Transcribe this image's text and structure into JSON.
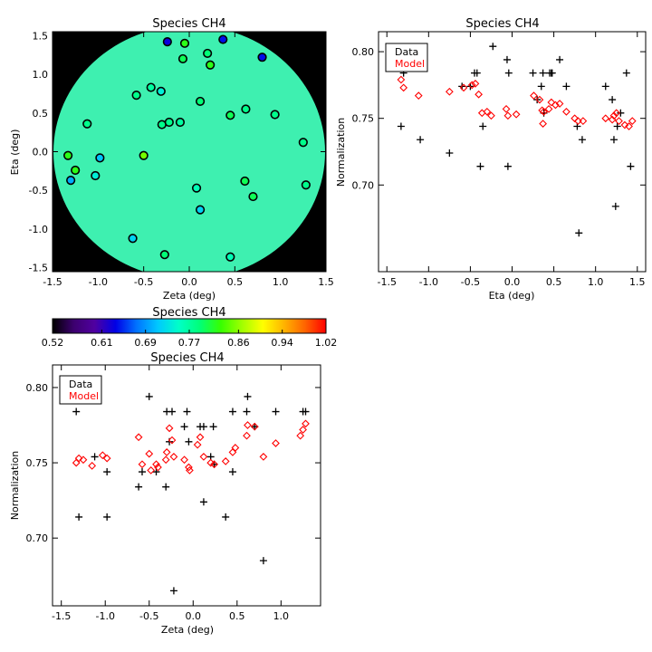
{
  "chart_data": [
    {
      "id": "map",
      "type": "scatter",
      "title": "Species CH4",
      "xlabel": "Zeta (deg)",
      "ylabel": "Eta (deg)",
      "xlim": [
        -1.5,
        1.5
      ],
      "ylim": [
        -1.55,
        1.55
      ],
      "xticks": [
        "-1.5",
        "-1.0",
        "-0.5",
        "0.0",
        "0.5",
        "1.0",
        "1.5"
      ],
      "yticks": [
        "-1.5",
        "-1.0",
        "-0.5",
        "0.0",
        "0.5",
        "1.0",
        "1.5"
      ],
      "background_color": "#000000",
      "field_color": "#3ef0b0",
      "points": [
        {
          "x": -0.24,
          "y": 1.42,
          "v": 0.63
        },
        {
          "x": -0.05,
          "y": 1.4,
          "v": 0.82
        },
        {
          "x": 0.37,
          "y": 1.45,
          "v": 0.64
        },
        {
          "x": 0.8,
          "y": 1.22,
          "v": 0.64
        },
        {
          "x": -0.07,
          "y": 1.2,
          "v": 0.8
        },
        {
          "x": 0.2,
          "y": 1.27,
          "v": 0.79
        },
        {
          "x": 0.23,
          "y": 1.12,
          "v": 0.82
        },
        {
          "x": -0.42,
          "y": 0.83,
          "v": 0.77
        },
        {
          "x": -0.31,
          "y": 0.78,
          "v": 0.74
        },
        {
          "x": -0.58,
          "y": 0.73,
          "v": 0.78
        },
        {
          "x": 0.12,
          "y": 0.65,
          "v": 0.79
        },
        {
          "x": 0.62,
          "y": 0.55,
          "v": 0.78
        },
        {
          "x": 0.45,
          "y": 0.47,
          "v": 0.8
        },
        {
          "x": 0.94,
          "y": 0.48,
          "v": 0.78
        },
        {
          "x": -1.12,
          "y": 0.36,
          "v": 0.78
        },
        {
          "x": -0.3,
          "y": 0.35,
          "v": 0.78
        },
        {
          "x": -0.22,
          "y": 0.38,
          "v": 0.78
        },
        {
          "x": -0.1,
          "y": 0.38,
          "v": 0.77
        },
        {
          "x": -1.33,
          "y": -0.05,
          "v": 0.82
        },
        {
          "x": -1.25,
          "y": -0.24,
          "v": 0.82
        },
        {
          "x": -0.98,
          "y": -0.08,
          "v": 0.71
        },
        {
          "x": -1.03,
          "y": -0.31,
          "v": 0.74
        },
        {
          "x": -0.5,
          "y": -0.05,
          "v": 0.85
        },
        {
          "x": -1.3,
          "y": -0.37,
          "v": 0.7
        },
        {
          "x": 0.08,
          "y": -0.47,
          "v": 0.76
        },
        {
          "x": 0.61,
          "y": -0.38,
          "v": 0.8
        },
        {
          "x": 0.7,
          "y": -0.58,
          "v": 0.8
        },
        {
          "x": 1.28,
          "y": -0.43,
          "v": 0.78
        },
        {
          "x": 0.12,
          "y": -0.75,
          "v": 0.72
        },
        {
          "x": -0.62,
          "y": -1.12,
          "v": 0.72
        },
        {
          "x": -0.27,
          "y": -1.33,
          "v": 0.79
        },
        {
          "x": 0.45,
          "y": -1.36,
          "v": 0.76
        },
        {
          "x": 1.25,
          "y": 0.12,
          "v": 0.78
        }
      ]
    },
    {
      "id": "eta",
      "type": "scatter",
      "title": "Species CH4",
      "xlabel": "Eta (deg)",
      "ylabel": "Normalization",
      "xlim": [
        -1.6,
        1.6
      ],
      "ylim": [
        0.635,
        0.815
      ],
      "xticks": [
        "-1.5",
        "-1.0",
        "-0.5",
        "0.0",
        "0.5",
        "1.0",
        "1.5"
      ],
      "yticks": [
        "0.70",
        "0.75",
        "0.80"
      ],
      "legend": {
        "position": "top-left",
        "entries": [
          {
            "label": "Data",
            "color": "#000000"
          },
          {
            "label": "Model",
            "color": "#ff0000"
          }
        ]
      },
      "series": [
        {
          "name": "Data",
          "marker": "plus",
          "color": "#000000",
          "x": [
            -1.33,
            -1.3,
            -1.1,
            -0.75,
            -0.6,
            -0.5,
            -0.45,
            -0.42,
            -0.38,
            -0.35,
            -0.23,
            -0.05,
            -0.06,
            -0.04,
            0.25,
            0.3,
            0.35,
            0.37,
            0.38,
            0.45,
            0.47,
            0.48,
            0.57,
            0.65,
            0.78,
            0.84,
            1.12,
            1.2,
            1.22,
            1.24,
            1.26,
            1.3,
            1.37,
            1.42,
            0.8
          ],
          "y": [
            0.744,
            0.784,
            0.734,
            0.724,
            0.774,
            0.774,
            0.784,
            0.784,
            0.714,
            0.744,
            0.804,
            0.714,
            0.794,
            0.784,
            0.784,
            0.764,
            0.774,
            0.784,
            0.754,
            0.784,
            0.784,
            0.784,
            0.794,
            0.774,
            0.744,
            0.734,
            0.774,
            0.764,
            0.734,
            0.684,
            0.744,
            0.754,
            0.784,
            0.714,
            0.664
          ]
        },
        {
          "name": "Model",
          "marker": "diamond",
          "color": "#ff0000",
          "x": [
            -1.33,
            -1.3,
            -1.12,
            -0.75,
            -0.58,
            -0.48,
            -0.44,
            -0.4,
            -0.36,
            -0.3,
            -0.25,
            -0.07,
            -0.05,
            0.05,
            0.26,
            0.33,
            0.36,
            0.37,
            0.38,
            0.44,
            0.47,
            0.52,
            0.57,
            0.65,
            0.75,
            0.79,
            0.85,
            1.12,
            1.2,
            1.22,
            1.25,
            1.28,
            1.35,
            1.4,
            1.44
          ],
          "y": [
            0.779,
            0.773,
            0.767,
            0.77,
            0.773,
            0.775,
            0.776,
            0.768,
            0.754,
            0.755,
            0.752,
            0.757,
            0.752,
            0.753,
            0.767,
            0.764,
            0.756,
            0.746,
            0.755,
            0.757,
            0.762,
            0.76,
            0.761,
            0.755,
            0.75,
            0.748,
            0.748,
            0.75,
            0.749,
            0.752,
            0.754,
            0.748,
            0.745,
            0.744,
            0.748
          ]
        }
      ]
    },
    {
      "id": "colorbar",
      "type": "heatmap",
      "title": "Species CH4",
      "ticks": [
        "0.52",
        "0.61",
        "0.69",
        "0.77",
        "0.86",
        "0.94",
        "1.02"
      ],
      "range": [
        0.52,
        1.02
      ],
      "colors": [
        "#000000",
        "#3c006e",
        "#5000a0",
        "#0000e6",
        "#0073ff",
        "#00c8ff",
        "#00ffc8",
        "#00ff78",
        "#37ff00",
        "#a0ff00",
        "#ffff00",
        "#ffb400",
        "#ff6400",
        "#ff0000"
      ]
    },
    {
      "id": "zeta",
      "type": "scatter",
      "title": "Species CH4",
      "xlabel": "Zeta (deg)",
      "ylabel": "Normalization",
      "xlim": [
        -1.6,
        1.45
      ],
      "ylim": [
        0.655,
        0.815
      ],
      "xticks": [
        "-1.5",
        "-1.0",
        "-0.5",
        "0.0",
        "0.5",
        "1.0",
        "1.5"
      ],
      "yticks": [
        "0.70",
        "0.75",
        "0.80"
      ],
      "legend": {
        "position": "top-left",
        "entries": [
          {
            "label": "Data",
            "color": "#000000"
          },
          {
            "label": "Model",
            "color": "#ff0000"
          }
        ]
      },
      "series": [
        {
          "name": "Data",
          "marker": "plus",
          "color": "#000000",
          "x": [
            -1.33,
            -1.3,
            -1.12,
            -0.98,
            -0.98,
            -0.62,
            -0.58,
            -0.5,
            -0.42,
            -0.31,
            -0.3,
            -0.27,
            -0.24,
            -0.22,
            -0.1,
            -0.07,
            -0.05,
            0.08,
            0.12,
            0.12,
            0.2,
            0.23,
            0.24,
            0.37,
            0.45,
            0.45,
            0.61,
            0.62,
            0.7,
            0.8,
            0.94,
            1.25,
            1.28
          ],
          "y": [
            0.784,
            0.714,
            0.754,
            0.744,
            0.714,
            0.734,
            0.744,
            0.794,
            0.744,
            0.734,
            0.784,
            0.764,
            0.784,
            0.665,
            0.774,
            0.784,
            0.764,
            0.774,
            0.774,
            0.724,
            0.754,
            0.774,
            0.749,
            0.714,
            0.784,
            0.744,
            0.784,
            0.794,
            0.774,
            0.685,
            0.784,
            0.784,
            0.784
          ]
        },
        {
          "name": "Model",
          "marker": "diamond",
          "color": "#ff0000",
          "x": [
            -1.33,
            -1.3,
            -1.25,
            -1.15,
            -1.03,
            -0.98,
            -0.62,
            -0.58,
            -0.5,
            -0.48,
            -0.42,
            -0.4,
            -0.31,
            -0.3,
            -0.27,
            -0.24,
            -0.22,
            -0.1,
            -0.05,
            -0.04,
            0.05,
            0.08,
            0.12,
            0.2,
            0.24,
            0.37,
            0.45,
            0.48,
            0.61,
            0.62,
            0.7,
            0.8,
            0.94,
            1.22,
            1.25,
            1.28
          ],
          "y": [
            0.75,
            0.753,
            0.752,
            0.748,
            0.755,
            0.753,
            0.767,
            0.749,
            0.756,
            0.745,
            0.749,
            0.747,
            0.752,
            0.757,
            0.773,
            0.765,
            0.754,
            0.752,
            0.747,
            0.745,
            0.762,
            0.767,
            0.754,
            0.75,
            0.749,
            0.751,
            0.757,
            0.76,
            0.768,
            0.775,
            0.774,
            0.754,
            0.763,
            0.768,
            0.772,
            0.776
          ]
        }
      ]
    }
  ]
}
